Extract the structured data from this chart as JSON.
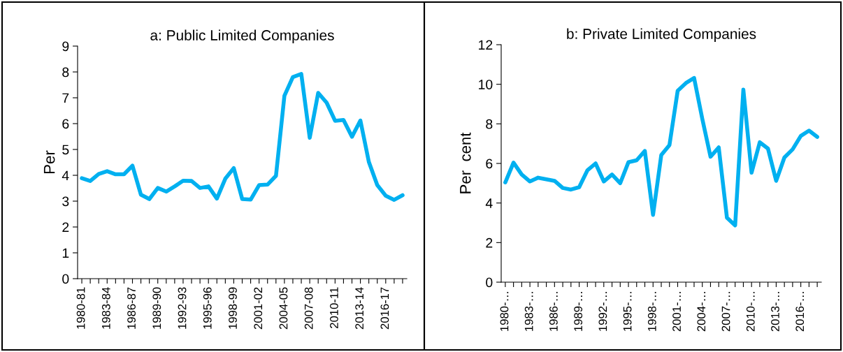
{
  "chart_data": [
    {
      "type": "line",
      "title": "a: Public Limited Companies",
      "ylabel": "Per",
      "categories": [
        "1980-81",
        null,
        null,
        "1983-84",
        null,
        null,
        "1986-87",
        null,
        null,
        "1989-90",
        null,
        null,
        "1992-93",
        null,
        null,
        "1995-96",
        null,
        null,
        "1998-99",
        null,
        null,
        "2001-02",
        null,
        null,
        "2004-05",
        null,
        null,
        "2007-08",
        null,
        null,
        "2010-11",
        null,
        null,
        "2013-14",
        null,
        null,
        "2016-17",
        null,
        null
      ],
      "series": [
        {
          "color": "#00b0f0",
          "values": [
            3.89,
            3.78,
            4.05,
            4.16,
            4.04,
            4.04,
            4.37,
            3.25,
            3.08,
            3.51,
            3.37,
            3.57,
            3.79,
            3.78,
            3.51,
            3.57,
            3.1,
            3.87,
            4.28,
            3.08,
            3.06,
            3.62,
            3.64,
            3.98,
            7.08,
            7.8,
            7.92,
            5.45,
            7.19,
            6.81,
            6.11,
            6.14,
            5.49,
            6.12,
            4.52,
            3.62,
            3.21,
            3.05,
            3.23
          ]
        }
      ],
      "ylim": [
        0,
        9
      ],
      "yticks": [
        0,
        1,
        2,
        3,
        4,
        5,
        6,
        7,
        8,
        9
      ],
      "grid": false
    },
    {
      "type": "line",
      "title": "b: Private Limited Companies",
      "ylabel": "Per  cent",
      "categories": [
        "1980-…",
        null,
        null,
        "1983-…",
        null,
        null,
        "1986-…",
        null,
        null,
        "1989-…",
        null,
        null,
        "1992-…",
        null,
        null,
        "1995-…",
        null,
        null,
        "1998-…",
        null,
        null,
        "2001-…",
        null,
        null,
        "2004-…",
        null,
        null,
        "2007-…",
        null,
        null,
        "2010-…",
        null,
        null,
        "2013-…",
        null,
        null,
        "2016-…",
        null,
        null
      ],
      "series": [
        {
          "color": "#00b0f0",
          "values": [
            5.04,
            6.04,
            5.44,
            5.09,
            5.28,
            5.2,
            5.12,
            4.76,
            4.68,
            4.8,
            5.65,
            6.0,
            5.09,
            5.44,
            5.0,
            6.06,
            6.16,
            6.63,
            3.4,
            6.42,
            6.93,
            9.67,
            10.06,
            10.32,
            8.25,
            6.34,
            6.81,
            3.26,
            2.87,
            9.73,
            5.53,
            7.07,
            6.75,
            5.12,
            6.3,
            6.71,
            7.39,
            7.66,
            7.34
          ]
        }
      ],
      "ylim": [
        0,
        12
      ],
      "yticks": [
        0,
        2,
        4,
        6,
        8,
        10,
        12
      ],
      "grid": false
    }
  ]
}
